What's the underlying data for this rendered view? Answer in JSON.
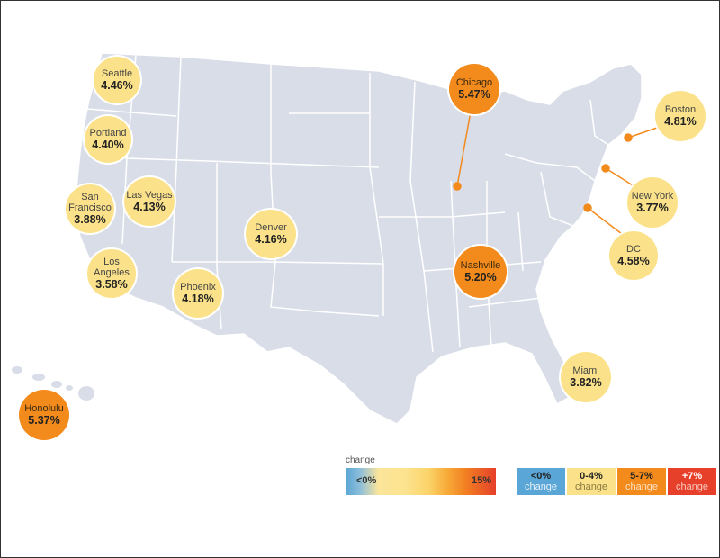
{
  "cities": [
    {
      "id": "seattle",
      "name": "Seattle",
      "value": "4.46%",
      "tier": "yellow"
    },
    {
      "id": "portland",
      "name": "Portland",
      "value": "4.40%",
      "tier": "yellow"
    },
    {
      "id": "san-francisco",
      "name": "San\nFrancisco",
      "value": "3.88%",
      "tier": "yellow"
    },
    {
      "id": "las-vegas",
      "name": "Las Vegas",
      "value": "4.13%",
      "tier": "yellow"
    },
    {
      "id": "los-angeles",
      "name": "Los\nAngeles",
      "value": "3.58%",
      "tier": "yellow"
    },
    {
      "id": "phoenix",
      "name": "Phoenix",
      "value": "4.18%",
      "tier": "yellow"
    },
    {
      "id": "denver",
      "name": "Denver",
      "value": "4.16%",
      "tier": "yellow"
    },
    {
      "id": "chicago",
      "name": "Chicago",
      "value": "5.47%",
      "tier": "orange"
    },
    {
      "id": "nashville",
      "name": "Nashville",
      "value": "5.20%",
      "tier": "orange"
    },
    {
      "id": "boston",
      "name": "Boston",
      "value": "4.81%",
      "tier": "yellow"
    },
    {
      "id": "new-york",
      "name": "New York",
      "value": "3.77%",
      "tier": "yellow"
    },
    {
      "id": "dc",
      "name": "DC",
      "value": "4.58%",
      "tier": "yellow"
    },
    {
      "id": "miami",
      "name": "Miami",
      "value": "3.82%",
      "tier": "yellow"
    },
    {
      "id": "honolulu",
      "name": "Honolulu",
      "value": "5.37%",
      "tier": "orange"
    }
  ],
  "gradient_legend": {
    "title": "change",
    "low_label": "<0%",
    "high_label": "15%"
  },
  "category_legend": [
    {
      "range": "<0%",
      "label": "change",
      "color": "#5aa6d6"
    },
    {
      "range": "0-4%",
      "label": "change",
      "color": "#fbe28a"
    },
    {
      "range": "5-7%",
      "label": "change",
      "color": "#f28a1c"
    },
    {
      "range": "+7%",
      "label": "change",
      "color": "#e6402a"
    }
  ],
  "colors": {
    "land": "#d8dde7",
    "state_border": "#ffffff",
    "yellow": "#fbe28a",
    "orange": "#f28a1c",
    "leader": "#f28a1c"
  }
}
